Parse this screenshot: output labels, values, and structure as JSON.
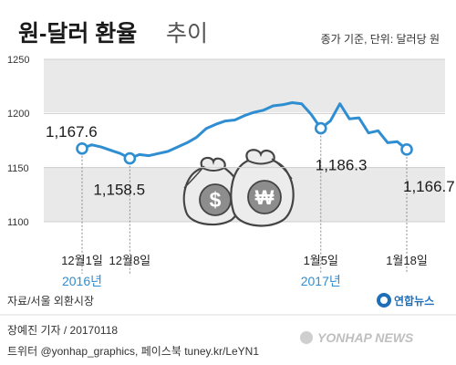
{
  "header": {
    "title_main": "원-달러 환율",
    "title_sub": "추이",
    "unit_note": "종가 기준, 단위: 달러당 원"
  },
  "chart_data": {
    "type": "line",
    "title": "원-달러 환율 추이",
    "ylim": [
      1100,
      1250
    ],
    "yticks": [
      1250,
      1200,
      1150,
      1100
    ],
    "grid": true,
    "series": [
      {
        "values": [
          [
            "2016-12-01",
            1167.6
          ],
          [
            "2016-12-02",
            1171.0
          ],
          [
            "2016-12-05",
            1169.0
          ],
          [
            "2016-12-06",
            1166.0
          ],
          [
            "2016-12-07",
            1163.0
          ],
          [
            "2016-12-08",
            1158.5
          ],
          [
            "2016-12-09",
            1162.0
          ],
          [
            "2016-12-12",
            1161.0
          ],
          [
            "2016-12-13",
            1163.0
          ],
          [
            "2016-12-14",
            1165.0
          ],
          [
            "2016-12-15",
            1169.0
          ],
          [
            "2016-12-16",
            1173.0
          ],
          [
            "2016-12-19",
            1178.0
          ],
          [
            "2016-12-20",
            1186.0
          ],
          [
            "2016-12-21",
            1190.0
          ],
          [
            "2016-12-22",
            1193.0
          ],
          [
            "2016-12-23",
            1194.0
          ],
          [
            "2016-12-26",
            1198.0
          ],
          [
            "2016-12-27",
            1201.0
          ],
          [
            "2016-12-28",
            1203.0
          ],
          [
            "2016-12-29",
            1207.0
          ],
          [
            "2016-12-30",
            1208.0
          ],
          [
            "2017-01-02",
            1210.0
          ],
          [
            "2017-01-03",
            1209.0
          ],
          [
            "2017-01-04",
            1199.0
          ],
          [
            "2017-01-05",
            1186.3
          ],
          [
            "2017-01-06",
            1193.0
          ],
          [
            "2017-01-09",
            1209.0
          ],
          [
            "2017-01-10",
            1195.0
          ],
          [
            "2017-01-11",
            1196.0
          ],
          [
            "2017-01-12",
            1182.0
          ],
          [
            "2017-01-13",
            1184.0
          ],
          [
            "2017-01-16",
            1173.0
          ],
          [
            "2017-01-17",
            1174.0
          ],
          [
            "2017-01-18",
            1166.7
          ]
        ]
      }
    ],
    "point_labels": [
      {
        "date": "2016-12-01",
        "text": "1,167.6"
      },
      {
        "date": "2016-12-08",
        "text": "1,158.5"
      },
      {
        "date": "2017-01-05",
        "text": "1,186.3"
      },
      {
        "date": "2017-01-18",
        "text": "1,166.7"
      }
    ],
    "x_tick_labels": [
      {
        "date": "2016-12-01",
        "text": "12월1일"
      },
      {
        "date": "2016-12-08",
        "text": "12월8일"
      },
      {
        "date": "2017-01-05",
        "text": "1월5일"
      },
      {
        "date": "2017-01-18",
        "text": "1월18일"
      }
    ],
    "year_labels": [
      {
        "date": "2016-12-01",
        "text": "2016년"
      },
      {
        "date": "2017-01-05",
        "text": "2017년"
      }
    ],
    "colors": {
      "line": "#2f8ed1",
      "band": "#e9e9e9",
      "grid": "#cfcfcf",
      "year_text": "#2f8ed1"
    }
  },
  "source": "자료/서울 외환시장",
  "footer": {
    "credit": "장예진 기자 / 20170118",
    "social": "트위터 @yonhap_graphics, 페이스북 tuney.kr/LeYN1"
  },
  "logo": {
    "text": "연합뉴스",
    "icon": "yonhap-logo-icon"
  },
  "watermark": "YONHAP NEWS",
  "illustration": {
    "icon": "money-bags-icon",
    "symbols": [
      "$",
      "₩"
    ]
  }
}
